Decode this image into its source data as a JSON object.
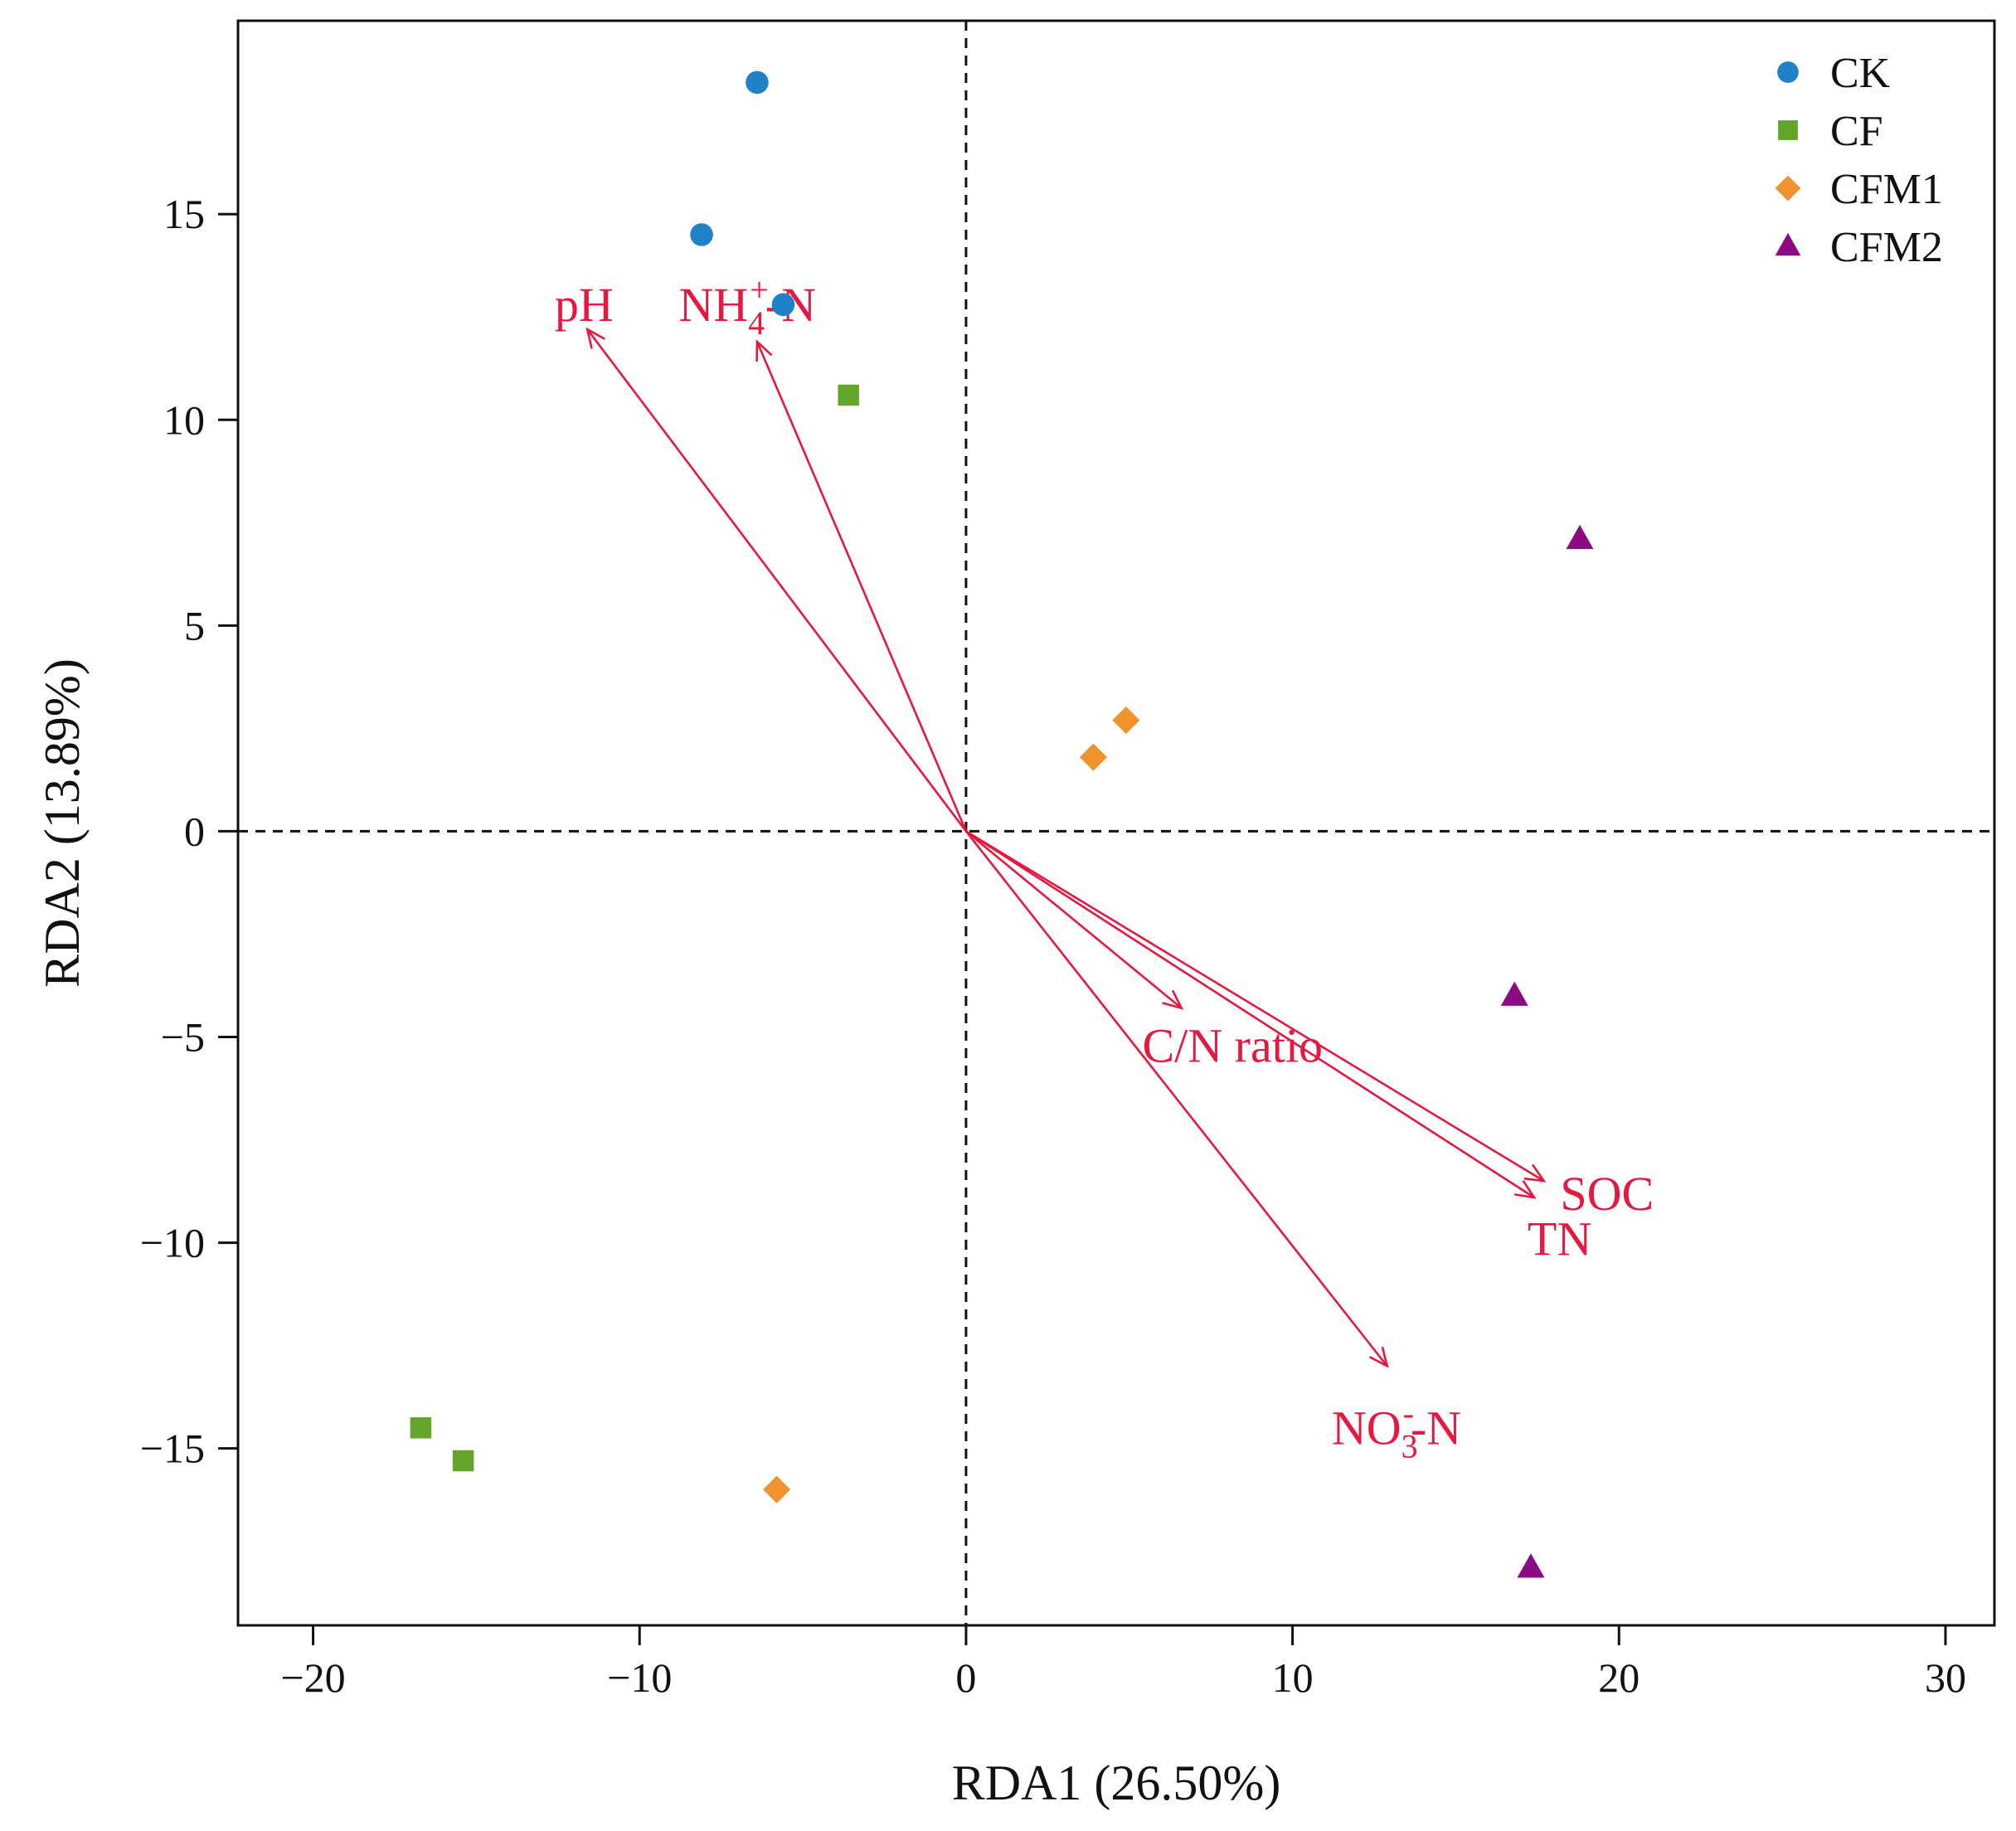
{
  "chart_data": {
    "type": "scatter",
    "title": "",
    "xlabel": "RDA1 (26.50%)",
    "ylabel": "RDA2 (13.89%)",
    "xlim": [
      -22.3,
      31.5
    ],
    "ylim": [
      -19.3,
      19.7
    ],
    "x_ticks": [
      -20,
      -10,
      0,
      10,
      20,
      30
    ],
    "y_ticks": [
      -15,
      -10,
      -5,
      0,
      5,
      10,
      15
    ],
    "x_tick_labels": [
      "−20",
      "−10",
      "0",
      "10",
      "20",
      "30"
    ],
    "y_tick_labels": [
      "−15",
      "−10",
      "−5",
      "0",
      "5",
      "10",
      "15"
    ],
    "reference_lines": {
      "x": 0,
      "y": 0,
      "style": "dashed"
    },
    "legend_position": "top-right",
    "series": [
      {
        "name": "CK",
        "marker": "circle",
        "color": "#1f82c8",
        "points": [
          [
            -6.4,
            18.2
          ],
          [
            -8.1,
            14.5
          ],
          [
            -5.6,
            12.8
          ]
        ]
      },
      {
        "name": "CF",
        "marker": "square",
        "color": "#63a52b",
        "points": [
          [
            -3.6,
            10.6
          ],
          [
            -16.7,
            -14.5
          ],
          [
            -15.4,
            -15.3
          ]
        ]
      },
      {
        "name": "CFM1",
        "marker": "diamond",
        "color": "#f0922e",
        "points": [
          [
            3.9,
            1.8
          ],
          [
            4.9,
            2.7
          ],
          [
            -5.8,
            -16.0
          ]
        ]
      },
      {
        "name": "CFM2",
        "marker": "triangle",
        "color": "#8c0a82",
        "points": [
          [
            18.8,
            7.1
          ],
          [
            16.8,
            -4.0
          ],
          [
            17.3,
            -17.9
          ]
        ]
      }
    ],
    "vectors_color": "#e8173f",
    "vectors": [
      {
        "name": "pH",
        "label_main": "pH",
        "x": -11.6,
        "y": 12.2,
        "label_at": [
          -12.6,
          12.4
        ]
      },
      {
        "name": "NH4+-N",
        "label_main": "NH",
        "label_sub": "4",
        "label_sup": "+",
        "label_tail": "-N",
        "x": -6.4,
        "y": 11.9,
        "label_at": [
          -8.8,
          12.4
        ]
      },
      {
        "name": "C/N ratio",
        "label_main": "C/N ratio",
        "x": 6.6,
        "y": -4.3,
        "label_at": [
          5.4,
          -5.6
        ]
      },
      {
        "name": "SOC",
        "label_main": "SOC",
        "x": 17.7,
        "y": -8.5,
        "label_at": [
          18.2,
          -9.2
        ]
      },
      {
        "name": "TN",
        "label_main": "TN",
        "x": 17.4,
        "y": -8.9,
        "label_at": [
          17.2,
          -10.3
        ]
      },
      {
        "name": "NO3--N",
        "label_main": "NO",
        "label_sub": "3",
        "label_sup": "-",
        "label_tail": "-N",
        "x": 12.9,
        "y": -13.0,
        "label_at": [
          11.2,
          -14.9
        ]
      }
    ]
  }
}
